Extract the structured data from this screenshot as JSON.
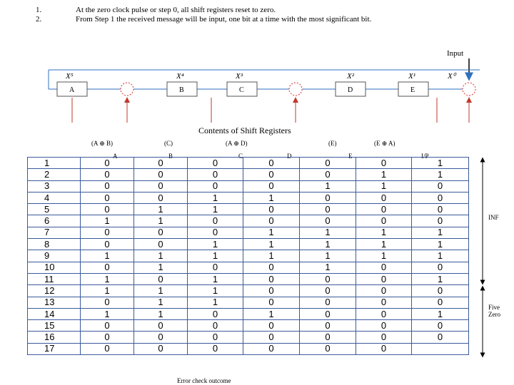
{
  "steps": [
    {
      "num": "1.",
      "text": "At the zero clock pulse or step 0, all shift registers reset to zero."
    },
    {
      "num": "2.",
      "text": "From Step 1 the received message will be input, one bit at a time with the most significant bit."
    }
  ],
  "circuit": {
    "input_label": "Input",
    "registers": [
      "A",
      "B",
      "C",
      "D",
      "E"
    ],
    "powers": [
      "X⁵",
      "X⁴",
      "X³",
      "X²",
      "X¹",
      "X⁰"
    ]
  },
  "contents_title": "Contents of Shift Registers",
  "column_headers": {
    "top": [
      "(A ⊕ B)",
      "(C)",
      "(A ⊕ D)",
      "(E)",
      "(E ⊕ A)"
    ],
    "bottom": [
      "A",
      "B",
      "C",
      "D",
      "E",
      "I/P"
    ]
  },
  "table": {
    "rows": [
      [
        "1",
        "0",
        "0",
        "0",
        "0",
        "0",
        "0",
        "1"
      ],
      [
        "2",
        "0",
        "0",
        "0",
        "0",
        "0",
        "1",
        "1"
      ],
      [
        "3",
        "0",
        "0",
        "0",
        "0",
        "1",
        "1",
        "0"
      ],
      [
        "4",
        "0",
        "0",
        "1",
        "1",
        "0",
        "0",
        "0"
      ],
      [
        "5",
        "0",
        "1",
        "1",
        "0",
        "0",
        "0",
        "0"
      ],
      [
        "6",
        "1",
        "1",
        "0",
        "0",
        "0",
        "0",
        "0"
      ],
      [
        "7",
        "0",
        "0",
        "0",
        "1",
        "1",
        "1",
        "1"
      ],
      [
        "8",
        "0",
        "0",
        "1",
        "1",
        "1",
        "1",
        "1"
      ],
      [
        "9",
        "1",
        "1",
        "1",
        "1",
        "1",
        "1",
        "1"
      ],
      [
        "10",
        "0",
        "1",
        "0",
        "0",
        "1",
        "0",
        "0"
      ],
      [
        "11",
        "1",
        "0",
        "1",
        "0",
        "0",
        "0",
        "1"
      ],
      [
        "12",
        "1",
        "1",
        "1",
        "0",
        "0",
        "0",
        "0"
      ],
      [
        "13",
        "0",
        "1",
        "1",
        "0",
        "0",
        "0",
        "0"
      ],
      [
        "14",
        "1",
        "1",
        "0",
        "1",
        "0",
        "0",
        "1"
      ],
      [
        "15",
        "0",
        "0",
        "0",
        "0",
        "0",
        "0",
        "0"
      ],
      [
        "16",
        "0",
        "0",
        "0",
        "0",
        "0",
        "0",
        "0"
      ],
      [
        "17",
        "0",
        "0",
        "0",
        "0",
        "0",
        "0",
        ""
      ]
    ]
  },
  "side_labels": {
    "inf": "INF",
    "five": "Five",
    "zero": "Zero"
  },
  "footer_text": "Error check outcome",
  "colors": {
    "table_border": "#3a5a9c",
    "diagram_line": "#2f6fbf",
    "adder": "#e05050",
    "arrow": "#c0392b"
  }
}
